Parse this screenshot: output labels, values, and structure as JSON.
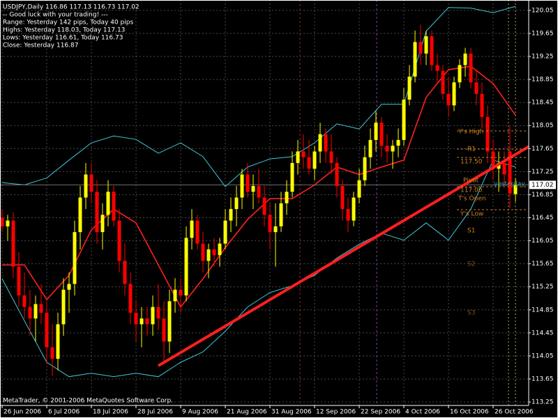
{
  "chart_data": {
    "type": "candlestick",
    "info_lines": [
      "USDJPY,Daily  116.86 117.13 116.73 117.02",
      "-- Good luck with your trading! ---",
      "Range: Yesterday 142 pips, Today 40 pips",
      "Highs: Yesterday 118.03, Today 117.13",
      "Lows:  Yesterday 116.61, Today 116.73",
      "Close: Yesterday 116.87"
    ],
    "footer": "MetaTrader, © 2001-2006 MetaQuotes Software Corp.",
    "categories": [
      "26 Jun 2006",
      null,
      null,
      null,
      null,
      null,
      null,
      null,
      "6 Jul 2006",
      null,
      null,
      null,
      null,
      null,
      null,
      null,
      "18 Jul 2006",
      null,
      null,
      null,
      null,
      null,
      null,
      null,
      "28 Jul 2006",
      null,
      null,
      null,
      null,
      null,
      null,
      null,
      "9 Aug 2006",
      null,
      null,
      null,
      null,
      null,
      null,
      null,
      "21 Aug 2006",
      null,
      null,
      null,
      null,
      null,
      null,
      null,
      "31 Aug 2006",
      null,
      null,
      null,
      null,
      null,
      null,
      null,
      "12 Sep 2006",
      null,
      null,
      null,
      null,
      null,
      null,
      null,
      "22 Sep 2006",
      null,
      null,
      null,
      null,
      null,
      null,
      null,
      "4 Oct 2006",
      null,
      null,
      null,
      null,
      null,
      null,
      null,
      "16 Oct 2006",
      null,
      null,
      null,
      null,
      null,
      null,
      null,
      "26 Oct 2006",
      null,
      null,
      null,
      null
    ],
    "open": [
      116.45,
      116.3,
      116.4,
      115.6,
      115.1,
      114.9,
      114.7,
      114.95,
      114.8,
      114.2,
      114.0,
      114.6,
      115.2,
      115.3,
      116.2,
      116.8,
      117.2,
      116.9,
      116.2,
      116.5,
      116.9,
      116.4,
      115.7,
      115.3,
      114.8,
      114.6,
      114.7,
      114.6,
      114.9,
      114.7,
      114.3,
      115.0,
      115.2,
      115.1,
      116.1,
      116.4,
      116.0,
      115.7,
      115.9,
      115.8,
      116.0,
      116.4,
      116.6,
      116.8,
      117.2,
      116.9,
      117.0,
      116.8,
      116.5,
      116.2,
      116.3,
      116.7,
      116.9,
      117.4,
      117.6,
      117.5,
      117.3,
      117.6,
      117.9,
      117.6,
      117.4,
      117.0,
      116.6,
      116.4,
      116.8,
      117.1,
      117.5,
      117.8,
      118.1,
      117.7,
      117.6,
      117.7,
      117.8,
      118.5,
      118.9,
      119.5,
      119.3,
      119.6,
      119.1,
      119.0,
      118.6,
      118.4,
      118.8,
      119.1,
      119.3,
      118.8,
      118.6,
      118.2,
      117.6,
      117.3,
      117.4,
      117.6,
      116.86
    ],
    "high": [
      116.6,
      116.5,
      116.55,
      115.85,
      115.5,
      115.2,
      115.1,
      115.3,
      115.0,
      114.6,
      114.8,
      115.4,
      115.5,
      116.4,
      117.0,
      117.4,
      117.4,
      117.1,
      116.7,
      117.1,
      117.0,
      116.6,
      116.0,
      115.5,
      115.0,
      114.9,
      114.9,
      115.1,
      115.3,
      115.0,
      115.2,
      115.4,
      115.4,
      116.3,
      116.6,
      116.5,
      116.2,
      116.0,
      116.1,
      116.1,
      116.6,
      116.8,
      117.0,
      117.3,
      117.4,
      117.2,
      117.3,
      117.0,
      116.7,
      116.7,
      116.9,
      117.1,
      117.6,
      117.8,
      117.9,
      117.8,
      117.7,
      118.1,
      118.0,
      117.9,
      117.5,
      117.1,
      116.8,
      116.9,
      117.3,
      117.7,
      118.0,
      118.3,
      118.2,
      117.9,
      117.8,
      118.0,
      118.7,
      119.1,
      119.7,
      119.8,
      119.7,
      119.7,
      119.3,
      119.1,
      118.9,
      118.9,
      119.2,
      119.4,
      119.4,
      119.0,
      118.8,
      118.4,
      117.8,
      117.6,
      117.6,
      118.03,
      117.13
    ],
    "low": [
      116.2,
      116.05,
      115.4,
      114.9,
      114.7,
      114.4,
      114.3,
      114.6,
      113.9,
      113.7,
      113.8,
      114.4,
      114.8,
      115.1,
      115.9,
      116.6,
      116.7,
      116.0,
      115.9,
      116.3,
      116.3,
      115.5,
      115.1,
      114.6,
      114.3,
      114.2,
      114.4,
      114.4,
      114.5,
      113.9,
      114.1,
      114.8,
      114.8,
      115.0,
      115.9,
      115.9,
      115.5,
      115.4,
      115.6,
      115.6,
      115.9,
      116.2,
      116.3,
      116.6,
      116.8,
      116.6,
      116.7,
      116.3,
      115.9,
      115.6,
      116.2,
      116.5,
      116.8,
      117.2,
      117.3,
      117.2,
      117.1,
      117.4,
      117.4,
      117.2,
      116.8,
      116.4,
      116.2,
      116.3,
      116.7,
      117.0,
      117.3,
      117.6,
      117.5,
      117.4,
      117.3,
      117.5,
      117.7,
      118.4,
      118.8,
      119.1,
      119.1,
      119.0,
      118.8,
      118.5,
      118.2,
      118.3,
      118.7,
      118.9,
      118.7,
      118.4,
      118.0,
      117.4,
      117.1,
      116.9,
      117.0,
      116.61,
      116.73
    ],
    "close": [
      116.3,
      116.4,
      115.6,
      115.1,
      114.9,
      114.7,
      114.95,
      114.8,
      114.2,
      114.0,
      114.6,
      115.2,
      115.3,
      116.2,
      116.8,
      117.2,
      116.9,
      116.2,
      116.5,
      116.9,
      116.4,
      115.7,
      115.3,
      114.8,
      114.6,
      114.7,
      114.6,
      114.9,
      114.7,
      114.3,
      115.0,
      115.2,
      115.1,
      116.1,
      116.4,
      116.0,
      115.7,
      115.9,
      115.8,
      116.0,
      116.4,
      116.6,
      116.8,
      117.2,
      116.9,
      117.0,
      116.8,
      116.5,
      116.2,
      116.3,
      116.7,
      116.9,
      117.4,
      117.6,
      117.5,
      117.3,
      117.6,
      117.9,
      117.6,
      117.4,
      117.0,
      116.6,
      116.4,
      116.8,
      117.1,
      117.5,
      117.8,
      118.1,
      117.7,
      117.6,
      117.7,
      117.8,
      118.5,
      118.9,
      119.5,
      119.3,
      119.6,
      119.1,
      119.0,
      118.6,
      118.4,
      118.8,
      119.1,
      119.3,
      118.8,
      118.6,
      118.2,
      117.6,
      117.3,
      117.4,
      117.2,
      116.87,
      117.02
    ],
    "up_color": "#ffff00",
    "down_color": "#ff0000",
    "indicators": {
      "x": [
        0,
        4,
        8,
        12,
        16,
        20,
        24,
        28,
        32,
        36,
        40,
        44,
        48,
        52,
        56,
        60,
        64,
        68,
        72,
        76,
        80,
        84,
        88,
        92
      ],
      "series": [
        {
          "color": "#40c8d8",
          "values": [
            117.06,
            117.02,
            117.14,
            117.45,
            117.75,
            117.87,
            117.81,
            117.57,
            117.75,
            117.51,
            116.99,
            117.33,
            117.47,
            117.51,
            117.75,
            118.08,
            117.99,
            118.42,
            118.42,
            119.69,
            120.1,
            120.09,
            120.01,
            120.12
          ]
        },
        {
          "color": "#40c8d8",
          "values": [
            115.39,
            114.66,
            113.94,
            113.69,
            113.75,
            113.69,
            113.75,
            113.69,
            113.94,
            114.12,
            114.48,
            114.9,
            115.15,
            115.27,
            115.45,
            115.75,
            115.99,
            116.18,
            116.06,
            116.36,
            116.06,
            116.6,
            117.45,
            117.33
          ]
        },
        {
          "color": "#ff2020",
          "values": [
            115.63,
            115.63,
            115.03,
            115.45,
            116.24,
            116.6,
            116.36,
            115.63,
            114.9,
            115.39,
            115.93,
            116.42,
            116.78,
            116.78,
            117.02,
            117.33,
            117.2,
            117.33,
            117.45,
            118.54,
            119.02,
            119.08,
            118.78,
            118.23
          ]
        }
      ]
    },
    "trendline": {
      "x": [
        28,
        99
      ],
      "values": [
        113.88,
        117.95
      ],
      "color": "#ff2020"
    },
    "pivot_labels": [
      "Y's High",
      "R1",
      "117.50",
      "Pivot",
      "yesterday",
      "117.00",
      "T's Open",
      "Y's Low",
      "S1",
      "S2",
      "S3"
    ],
    "ylim": [
      113.19,
      120.23
    ],
    "yticks": [
      120.05,
      119.65,
      119.25,
      118.85,
      118.45,
      118.05,
      117.65,
      117.25,
      116.85,
      116.45,
      116.05,
      115.65,
      115.25,
      114.85,
      114.45,
      114.05,
      113.65,
      113.25
    ],
    "grid": true
  }
}
